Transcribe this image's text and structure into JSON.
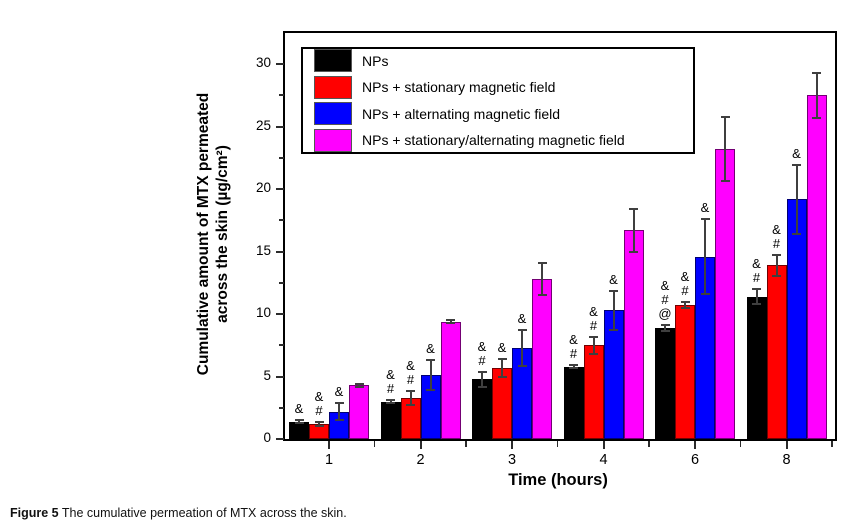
{
  "figure": {
    "caption_label": "Figure 5",
    "caption_text": " The cumulative permeation of MTX across the skin."
  },
  "chart_data": {
    "type": "bar",
    "title": "",
    "xlabel": "Time (hours)",
    "ylabel_line1": "Cumulative amount of MTX permeated",
    "ylabel_line2": "across the skin (µg/cm²)",
    "categories": [
      "1",
      "2",
      "3",
      "4",
      "6",
      "8"
    ],
    "ylim": [
      0,
      32.5
    ],
    "yticks": [
      0,
      5,
      10,
      15,
      20,
      25,
      30
    ],
    "yticks_minor": [
      2.5,
      7.5,
      12.5,
      17.5,
      22.5,
      27.5
    ],
    "grid": false,
    "legend_position": "top-left",
    "error_bars": true,
    "series": [
      {
        "name": "NPs",
        "color": "#000000",
        "values": [
          1.4,
          3.0,
          4.8,
          5.8,
          8.9,
          11.4
        ],
        "errors": [
          0.1,
          0.1,
          0.6,
          0.15,
          0.25,
          0.6
        ],
        "annotations": [
          [
            "&"
          ],
          [
            "&",
            "#"
          ],
          [
            "&",
            "#"
          ],
          [
            "&",
            "#"
          ],
          [
            "&",
            "#",
            "@"
          ],
          [
            "&",
            "#"
          ]
        ]
      },
      {
        "name": "NPs + stationary magnetic field",
        "color": "#ff0000",
        "values": [
          1.2,
          3.3,
          5.7,
          7.5,
          10.7,
          13.9
        ],
        "errors": [
          0.15,
          0.55,
          0.7,
          0.7,
          0.25,
          0.85
        ],
        "annotations": [
          [
            "&",
            "#"
          ],
          [
            "&",
            "#"
          ],
          [
            "&"
          ],
          [
            "&",
            "#"
          ],
          [
            "&",
            "#"
          ],
          [
            "&",
            "#"
          ]
        ]
      },
      {
        "name": "NPs + alternating magnetic field",
        "color": "#0000ff",
        "values": [
          2.2,
          5.1,
          7.3,
          10.3,
          14.6,
          19.2
        ],
        "errors": [
          0.7,
          1.2,
          1.45,
          1.55,
          3.0,
          2.75
        ],
        "annotations": [
          [
            "&"
          ],
          [
            "&"
          ],
          [
            "&"
          ],
          [
            "&"
          ],
          [
            "&"
          ],
          [
            "&"
          ]
        ]
      },
      {
        "name": "NPs + stationary/alternating magnetic field",
        "color": "#ff00ff",
        "values": [
          4.3,
          9.4,
          12.8,
          16.7,
          23.2,
          27.5
        ],
        "errors": [
          0.1,
          0.1,
          1.25,
          1.75,
          2.55,
          1.8
        ],
        "annotations": [
          [],
          [],
          [],
          [],
          [],
          []
        ]
      }
    ]
  }
}
